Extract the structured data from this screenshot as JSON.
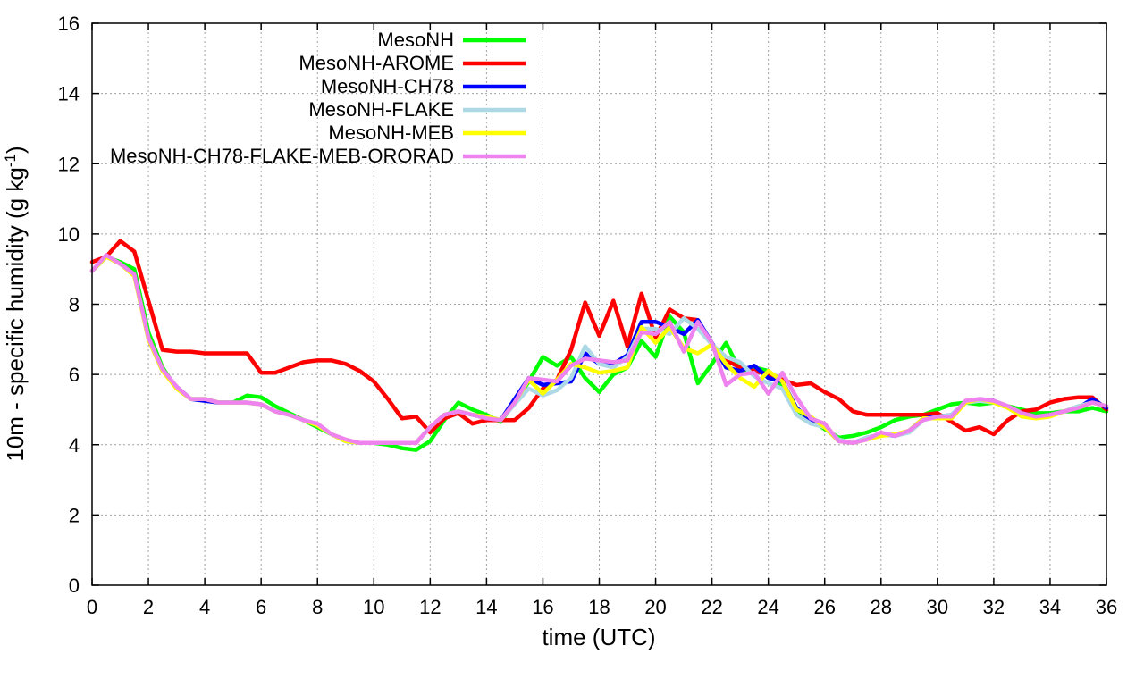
{
  "chart_data": {
    "type": "line",
    "title": "",
    "xlabel": "time (UTC)",
    "ylabel_main": "10m - specific humidity (g kg",
    "ylabel_sup": "-1",
    "ylabel_end": ")",
    "xlim": [
      0,
      36
    ],
    "ylim": [
      0,
      16
    ],
    "xticks": [
      0,
      2,
      4,
      6,
      8,
      10,
      12,
      14,
      16,
      18,
      20,
      22,
      24,
      26,
      28,
      30,
      32,
      34,
      36
    ],
    "yticks": [
      0,
      2,
      4,
      6,
      8,
      10,
      12,
      14,
      16
    ],
    "grid": true,
    "legend_position": "top-left",
    "x": [
      0,
      0.5,
      1,
      1.5,
      2,
      2.5,
      3,
      3.5,
      4,
      4.5,
      5,
      5.5,
      6,
      6.5,
      7,
      7.5,
      8,
      8.5,
      9,
      9.5,
      10,
      10.5,
      11,
      11.5,
      12,
      12.5,
      13,
      13.5,
      14,
      14.5,
      15,
      15.5,
      16,
      16.5,
      17,
      17.5,
      18,
      18.5,
      19,
      19.5,
      20,
      20.5,
      21,
      21.5,
      22,
      22.5,
      23,
      23.5,
      24,
      24.5,
      25,
      25.5,
      26,
      26.5,
      27,
      27.5,
      28,
      28.5,
      29,
      29.5,
      30,
      30.5,
      31,
      31.5,
      32,
      32.5,
      33,
      33.5,
      34,
      34.5,
      35,
      35.5,
      36
    ],
    "series": [
      {
        "name": "MesoNH",
        "color": "#00ff00",
        "values": [
          8.95,
          9.35,
          9.2,
          9.0,
          7.2,
          6.2,
          5.6,
          5.3,
          5.3,
          5.2,
          5.2,
          5.4,
          5.35,
          5.1,
          4.9,
          4.7,
          4.5,
          4.3,
          4.1,
          4.05,
          4.05,
          4.0,
          3.9,
          3.85,
          4.1,
          4.7,
          5.2,
          5.0,
          4.85,
          4.65,
          5.2,
          5.8,
          6.5,
          6.25,
          6.5,
          5.9,
          5.5,
          6.0,
          6.2,
          6.95,
          6.5,
          7.65,
          7.2,
          5.75,
          6.3,
          6.9,
          6.1,
          6.2,
          6.1,
          5.6,
          5.0,
          4.7,
          4.45,
          4.2,
          4.25,
          4.35,
          4.5,
          4.7,
          4.8,
          4.85,
          5.0,
          5.15,
          5.2,
          5.15,
          5.2,
          5.1,
          5.0,
          4.9,
          4.9,
          4.95,
          4.95,
          5.05,
          4.95
        ]
      },
      {
        "name": "MesoNH-AROME",
        "color": "#ff0000",
        "values": [
          9.2,
          9.35,
          9.8,
          9.5,
          8.1,
          6.7,
          6.65,
          6.65,
          6.6,
          6.6,
          6.6,
          6.6,
          6.05,
          6.05,
          6.2,
          6.35,
          6.4,
          6.4,
          6.3,
          6.1,
          5.8,
          5.3,
          4.75,
          4.8,
          4.35,
          4.75,
          4.9,
          4.6,
          4.7,
          4.7,
          4.7,
          5.05,
          5.6,
          5.85,
          6.7,
          8.05,
          7.1,
          8.1,
          6.8,
          8.3,
          7.05,
          7.85,
          7.6,
          7.55,
          6.85,
          6.4,
          6.2,
          6.1,
          6.0,
          5.85,
          5.7,
          5.75,
          5.5,
          5.3,
          4.95,
          4.85,
          4.85,
          4.85,
          4.85,
          4.85,
          4.9,
          4.65,
          4.4,
          4.5,
          4.3,
          4.7,
          4.95,
          5.0,
          5.2,
          5.3,
          5.35,
          5.35,
          5.0
        ]
      },
      {
        "name": "MesoNH-CH78",
        "color": "#0000ff",
        "values": [
          8.95,
          9.35,
          9.15,
          8.85,
          7.0,
          6.1,
          5.65,
          5.3,
          5.25,
          5.2,
          5.2,
          5.2,
          5.15,
          4.95,
          4.85,
          4.7,
          4.55,
          4.3,
          4.1,
          4.05,
          4.05,
          4.05,
          4.05,
          4.05,
          4.5,
          4.85,
          4.95,
          4.85,
          4.8,
          4.7,
          5.3,
          5.9,
          5.7,
          5.75,
          5.8,
          6.6,
          6.3,
          6.3,
          6.55,
          7.5,
          7.5,
          7.35,
          7.15,
          7.55,
          6.9,
          6.2,
          6.1,
          6.25,
          5.9,
          5.8,
          5.05,
          4.7,
          4.5,
          4.1,
          4.05,
          4.2,
          4.3,
          4.25,
          4.4,
          4.75,
          4.8,
          4.85,
          5.2,
          5.3,
          5.25,
          5.05,
          4.9,
          4.8,
          4.85,
          4.95,
          5.05,
          5.3,
          5.05
        ]
      },
      {
        "name": "MesoNH-FLAKE",
        "color": "#add8e6",
        "values": [
          8.95,
          9.35,
          9.15,
          8.8,
          7.0,
          6.1,
          5.6,
          5.3,
          5.3,
          5.2,
          5.2,
          5.2,
          5.15,
          4.95,
          4.85,
          4.7,
          4.55,
          4.3,
          4.1,
          4.05,
          4.05,
          4.05,
          4.05,
          4.05,
          4.5,
          4.85,
          4.95,
          4.85,
          4.8,
          4.7,
          5.15,
          5.6,
          5.4,
          5.55,
          5.9,
          6.8,
          6.3,
          6.2,
          6.5,
          7.3,
          7.3,
          7.15,
          7.6,
          7.3,
          6.85,
          6.5,
          6.35,
          5.95,
          5.75,
          5.6,
          4.85,
          4.6,
          4.5,
          4.15,
          4.05,
          4.2,
          4.3,
          4.25,
          4.35,
          4.7,
          4.8,
          4.85,
          5.2,
          5.25,
          5.2,
          5.1,
          4.85,
          4.8,
          4.85,
          4.95,
          5.1,
          5.2,
          5.1
        ]
      },
      {
        "name": "MesoNH-MEB",
        "color": "#ffff00",
        "values": [
          8.95,
          9.35,
          9.15,
          8.8,
          7.0,
          6.1,
          5.6,
          5.3,
          5.3,
          5.2,
          5.2,
          5.2,
          5.15,
          4.95,
          4.85,
          4.7,
          4.55,
          4.3,
          4.1,
          4.05,
          4.05,
          4.05,
          4.05,
          4.05,
          4.5,
          4.85,
          4.95,
          4.85,
          4.8,
          4.7,
          5.2,
          5.85,
          5.45,
          5.85,
          6.3,
          6.2,
          6.05,
          6.1,
          6.2,
          7.35,
          6.9,
          7.35,
          6.75,
          6.6,
          6.85,
          6.3,
          5.9,
          5.65,
          6.1,
          5.8,
          5.0,
          4.8,
          4.5,
          4.1,
          4.05,
          4.15,
          4.25,
          4.3,
          4.4,
          4.75,
          4.75,
          4.75,
          5.2,
          5.3,
          5.2,
          5.05,
          4.8,
          4.75,
          4.8,
          4.95,
          5.05,
          5.2,
          5.1
        ]
      },
      {
        "name": "MesoNH-CH78-FLAKE-MEB-ORORAD",
        "color": "#ee82ee",
        "values": [
          8.95,
          9.4,
          9.15,
          8.85,
          7.05,
          6.15,
          5.65,
          5.3,
          5.3,
          5.2,
          5.2,
          5.2,
          5.15,
          4.95,
          4.85,
          4.7,
          4.6,
          4.3,
          4.15,
          4.05,
          4.05,
          4.05,
          4.05,
          4.05,
          4.5,
          4.85,
          4.95,
          4.85,
          4.75,
          4.7,
          5.2,
          5.9,
          5.85,
          5.8,
          6.25,
          6.45,
          6.4,
          6.35,
          6.4,
          7.2,
          7.15,
          7.5,
          6.65,
          7.5,
          6.9,
          5.7,
          6.0,
          6.05,
          5.45,
          6.05,
          5.35,
          4.75,
          4.6,
          4.1,
          4.05,
          4.15,
          4.35,
          4.25,
          4.4,
          4.7,
          4.8,
          4.8,
          5.25,
          5.3,
          5.25,
          5.1,
          4.9,
          4.8,
          4.85,
          4.95,
          5.05,
          5.2,
          5.1
        ]
      }
    ]
  }
}
